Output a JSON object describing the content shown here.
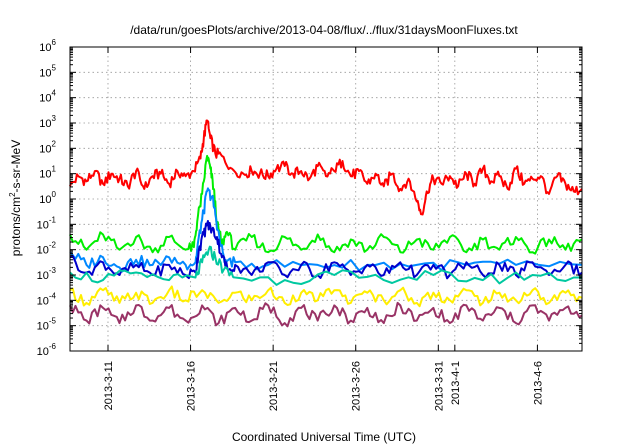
{
  "chart_data": {
    "type": "line",
    "title": "/data/run/goesPlots/archive/2013-04-08/flux/../flux/31daysMoonFluxes.txt",
    "xlabel": "Coordinated Universal Time (UTC)",
    "ylabel": {
      "base": "protons/cm",
      "sup": "2",
      "rest": "-s-sr-MeV"
    },
    "y_scale": "log",
    "ylim_exp": [
      -6,
      6
    ],
    "y_tick_exponents": [
      -6,
      -5,
      -4,
      -3,
      -2,
      -1,
      0,
      1,
      2,
      3,
      4,
      5,
      6
    ],
    "y_tick_base": "10",
    "xlim_days": [
      0,
      31
    ],
    "x_ticks": [
      {
        "label": "2013-3-11",
        "day": 2.3
      },
      {
        "label": "2013-3-16",
        "day": 7.3
      },
      {
        "label": "2013-3-21",
        "day": 12.3
      },
      {
        "label": "2013-3-26",
        "day": 17.3
      },
      {
        "label": "2013-3-31",
        "day": 22.3
      },
      {
        "label": "2013-4-1",
        "day": 23.3
      },
      {
        "label": "2013-4-6",
        "day": 28.3
      }
    ],
    "grid": true,
    "series": [
      {
        "color": "#ff0000",
        "points": [
          [
            0,
            0.5
          ],
          [
            0.5,
            0.9
          ],
          [
            1,
            0.7
          ],
          [
            1.5,
            1.1
          ],
          [
            2,
            0.6
          ],
          [
            2.5,
            1.0
          ],
          [
            3,
            0.8
          ],
          [
            3.5,
            0.5
          ],
          [
            4,
            1.1
          ],
          [
            4.5,
            0.4
          ],
          [
            5,
            0.9
          ],
          [
            5.5,
            1.0
          ],
          [
            6,
            0.6
          ],
          [
            6.5,
            1.1
          ],
          [
            7,
            0.9
          ],
          [
            7.5,
            1.1
          ],
          [
            7.9,
            1.6
          ],
          [
            8.1,
            2.4
          ],
          [
            8.3,
            3.1
          ],
          [
            8.5,
            2.4
          ],
          [
            8.8,
            1.8
          ],
          [
            9.2,
            1.7
          ],
          [
            9.8,
            1.2
          ],
          [
            10.5,
            1.0
          ],
          [
            11,
            1.1
          ],
          [
            11.5,
            1.0
          ],
          [
            12,
            0.9
          ],
          [
            12.5,
            1.2
          ],
          [
            13,
            1.3
          ],
          [
            13.5,
            1.0
          ],
          [
            14,
            1.1
          ],
          [
            14.5,
            0.8
          ],
          [
            15,
            1.3
          ],
          [
            15.5,
            0.9
          ],
          [
            16,
            1.1
          ],
          [
            16.5,
            1.5
          ],
          [
            17,
            0.9
          ],
          [
            17.5,
            1.1
          ],
          [
            18,
            0.6
          ],
          [
            18.5,
            1.0
          ],
          [
            19,
            0.5
          ],
          [
            19.5,
            1.0
          ],
          [
            20,
            0.4
          ],
          [
            20.5,
            0.8
          ],
          [
            21,
            -0.1
          ],
          [
            21.3,
            -0.6
          ],
          [
            21.6,
            0.3
          ],
          [
            22,
            0.8
          ],
          [
            22.5,
            0.6
          ],
          [
            23,
            0.9
          ],
          [
            23.5,
            0.5
          ],
          [
            24,
            1.0
          ],
          [
            24.5,
            0.6
          ],
          [
            25,
            1.2
          ],
          [
            25.5,
            0.7
          ],
          [
            26,
            0.9
          ],
          [
            26.5,
            0.4
          ],
          [
            27,
            1.2
          ],
          [
            27.5,
            0.6
          ],
          [
            28,
            0.8
          ],
          [
            28.5,
            0.9
          ],
          [
            29,
            0.2
          ],
          [
            29.5,
            0.9
          ],
          [
            30,
            0.6
          ],
          [
            30.5,
            0.3
          ],
          [
            31,
            0.4
          ]
        ]
      },
      {
        "color": "#00ee00",
        "points": [
          [
            0,
            -1.4
          ],
          [
            1,
            -2.0
          ],
          [
            2,
            -1.4
          ],
          [
            3,
            -2.0
          ],
          [
            4,
            -1.5
          ],
          [
            5,
            -2.1
          ],
          [
            6,
            -1.5
          ],
          [
            7,
            -2.0
          ],
          [
            7.5,
            -1.9
          ],
          [
            7.7,
            -0.9
          ],
          [
            8.0,
            0.2
          ],
          [
            8.3,
            1.7
          ],
          [
            8.5,
            1.2
          ],
          [
            8.7,
            0.4
          ],
          [
            8.9,
            -0.9
          ],
          [
            9.2,
            -1.8
          ],
          [
            9.5,
            -1.3
          ],
          [
            10,
            -2.0
          ],
          [
            11,
            -1.5
          ],
          [
            12,
            -2.1
          ],
          [
            13,
            -1.5
          ],
          [
            14,
            -2.0
          ],
          [
            15,
            -1.4
          ],
          [
            16,
            -2.1
          ],
          [
            17,
            -1.6
          ],
          [
            18,
            -2.0
          ],
          [
            19,
            -1.5
          ],
          [
            20,
            -2.1
          ],
          [
            21,
            -1.6
          ],
          [
            22,
            -2.0
          ],
          [
            23,
            -1.5
          ],
          [
            24,
            -2.1
          ],
          [
            25,
            -1.6
          ],
          [
            26,
            -2.0
          ],
          [
            27,
            -1.5
          ],
          [
            28,
            -2.1
          ],
          [
            29,
            -1.6
          ],
          [
            30,
            -2.0
          ],
          [
            31,
            -1.6
          ]
        ]
      },
      {
        "color": "#0088ff",
        "points": [
          [
            0,
            -2.1
          ],
          [
            1,
            -2.6
          ],
          [
            2,
            -2.3
          ],
          [
            3,
            -2.7
          ],
          [
            4,
            -2.4
          ],
          [
            5,
            -2.6
          ],
          [
            6,
            -2.3
          ],
          [
            7,
            -2.6
          ],
          [
            7.6,
            -2.5
          ],
          [
            7.8,
            -1.5
          ],
          [
            8.1,
            -0.5
          ],
          [
            8.3,
            0.3
          ],
          [
            8.6,
            0.1
          ],
          [
            8.8,
            -0.6
          ],
          [
            9.1,
            -1.8
          ],
          [
            9.4,
            -2.4
          ],
          [
            10,
            -2.5
          ],
          [
            12,
            -2.6
          ],
          [
            15,
            -2.6
          ],
          [
            18,
            -2.6
          ],
          [
            21,
            -2.6
          ],
          [
            24,
            -2.6
          ],
          [
            27,
            -2.6
          ],
          [
            31,
            -2.6
          ]
        ]
      },
      {
        "color": "#0000cc",
        "points": [
          [
            0,
            -2.3
          ],
          [
            1,
            -2.9
          ],
          [
            2,
            -2.5
          ],
          [
            3,
            -3.0
          ],
          [
            4,
            -2.6
          ],
          [
            5,
            -3.0
          ],
          [
            6,
            -2.6
          ],
          [
            7,
            -3.0
          ],
          [
            7.6,
            -2.9
          ],
          [
            7.8,
            -2.0
          ],
          [
            8.1,
            -1.4
          ],
          [
            8.3,
            -1.0
          ],
          [
            8.6,
            -1.2
          ],
          [
            8.9,
            -1.5
          ],
          [
            9.2,
            -2.3
          ],
          [
            9.6,
            -2.8
          ],
          [
            10,
            -2.6
          ],
          [
            11,
            -3.0
          ],
          [
            12,
            -2.5
          ],
          [
            13,
            -3.0
          ],
          [
            14,
            -2.6
          ],
          [
            15,
            -3.0
          ],
          [
            16,
            -2.5
          ],
          [
            17,
            -3.0
          ],
          [
            18,
            -2.6
          ],
          [
            19,
            -3.0
          ],
          [
            20,
            -2.5
          ],
          [
            21,
            -3.0
          ],
          [
            22,
            -2.6
          ],
          [
            23,
            -3.0
          ],
          [
            24,
            -2.5
          ],
          [
            25,
            -3.0
          ],
          [
            26,
            -2.6
          ],
          [
            27,
            -3.0
          ],
          [
            28,
            -2.5
          ],
          [
            29,
            -3.0
          ],
          [
            30,
            -2.6
          ],
          [
            31,
            -2.9
          ]
        ]
      },
      {
        "color": "#00c8a0",
        "points": [
          [
            0,
            -2.9
          ],
          [
            2,
            -3.2
          ],
          [
            4,
            -2.9
          ],
          [
            6,
            -3.2
          ],
          [
            7.6,
            -3.1
          ],
          [
            8.0,
            -2.5
          ],
          [
            8.4,
            -2.0
          ],
          [
            8.8,
            -2.3
          ],
          [
            9.3,
            -2.8
          ],
          [
            10,
            -3.1
          ],
          [
            13,
            -3.2
          ],
          [
            16,
            -3.0
          ],
          [
            19,
            -3.2
          ],
          [
            22,
            -3.0
          ],
          [
            25,
            -3.2
          ],
          [
            28,
            -3.0
          ],
          [
            31,
            -3.1
          ]
        ]
      },
      {
        "color": "#ffee00",
        "points": [
          [
            0,
            -3.6
          ],
          [
            1,
            -4.1
          ],
          [
            2,
            -3.6
          ],
          [
            3,
            -4.1
          ],
          [
            4,
            -3.7
          ],
          [
            5,
            -4.1
          ],
          [
            6,
            -3.6
          ],
          [
            7,
            -4.0
          ],
          [
            8,
            -3.6
          ],
          [
            9,
            -4.1
          ],
          [
            10,
            -3.7
          ],
          [
            11,
            -4.0
          ],
          [
            12,
            -3.6
          ],
          [
            13,
            -4.1
          ],
          [
            14,
            -3.7
          ],
          [
            15,
            -4.0
          ],
          [
            16,
            -3.6
          ],
          [
            17,
            -4.1
          ],
          [
            18,
            -3.7
          ],
          [
            19,
            -4.0
          ],
          [
            20,
            -3.6
          ],
          [
            21,
            -4.1
          ],
          [
            22,
            -3.7
          ],
          [
            23,
            -4.0
          ],
          [
            24,
            -3.6
          ],
          [
            25,
            -4.1
          ],
          [
            26,
            -3.7
          ],
          [
            27,
            -4.0
          ],
          [
            28,
            -3.6
          ],
          [
            29,
            -4.1
          ],
          [
            30,
            -3.7
          ],
          [
            31,
            -3.9
          ]
        ]
      },
      {
        "color": "#993366",
        "points": [
          [
            0,
            -4.2
          ],
          [
            1,
            -4.8
          ],
          [
            2,
            -4.3
          ],
          [
            3,
            -4.9
          ],
          [
            4,
            -4.2
          ],
          [
            5,
            -4.8
          ],
          [
            6,
            -4.3
          ],
          [
            7,
            -4.8
          ],
          [
            8,
            -4.2
          ],
          [
            9,
            -4.9
          ],
          [
            10,
            -4.3
          ],
          [
            11,
            -4.8
          ],
          [
            12,
            -4.2
          ],
          [
            13,
            -4.9
          ],
          [
            14,
            -4.3
          ],
          [
            15,
            -4.8
          ],
          [
            16,
            -4.2
          ],
          [
            17,
            -4.8
          ],
          [
            18,
            -4.3
          ],
          [
            19,
            -4.9
          ],
          [
            20,
            -4.2
          ],
          [
            21,
            -4.8
          ],
          [
            22,
            -4.3
          ],
          [
            23,
            -4.9
          ],
          [
            24,
            -4.2
          ],
          [
            25,
            -4.8
          ],
          [
            26,
            -4.3
          ],
          [
            27,
            -4.9
          ],
          [
            28,
            -4.2
          ],
          [
            29,
            -4.8
          ],
          [
            30,
            -4.3
          ],
          [
            31,
            -4.6
          ]
        ]
      }
    ]
  }
}
